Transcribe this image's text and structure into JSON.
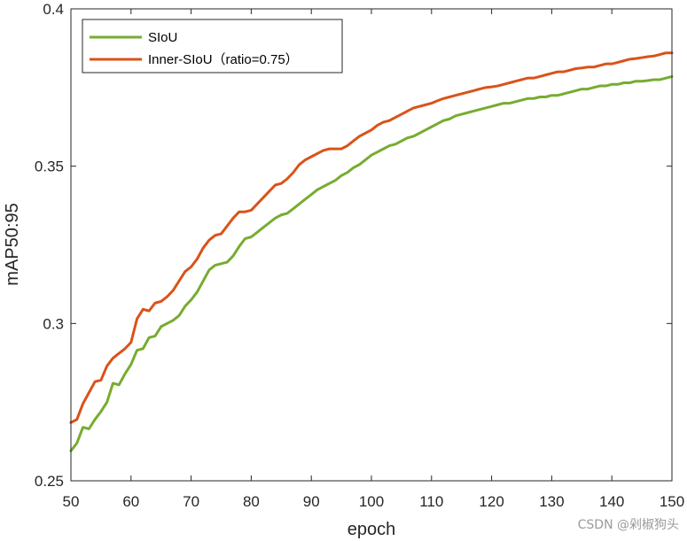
{
  "chart_data": {
    "type": "line",
    "xlabel": "epoch",
    "ylabel": "mAP50:95",
    "xlim": [
      50,
      150
    ],
    "ylim": [
      0.25,
      0.4
    ],
    "xticks": [
      50,
      60,
      70,
      80,
      90,
      100,
      110,
      120,
      130,
      140,
      150
    ],
    "yticks": [
      0.25,
      0.3,
      0.35,
      0.4
    ],
    "ytick_labels": [
      "0.25",
      "0.3",
      "0.35",
      "0.4"
    ],
    "grid": false,
    "legend_position": "top-left",
    "series": [
      {
        "name": "SIoU",
        "color": "#77ac30",
        "x": [
          50,
          51,
          52,
          53,
          54,
          55,
          56,
          57,
          58,
          59,
          60,
          61,
          62,
          63,
          64,
          65,
          66,
          67,
          68,
          69,
          70,
          71,
          72,
          73,
          74,
          75,
          76,
          77,
          78,
          79,
          80,
          81,
          82,
          83,
          84,
          85,
          86,
          87,
          88,
          89,
          90,
          91,
          92,
          93,
          94,
          95,
          96,
          97,
          98,
          99,
          100,
          101,
          102,
          103,
          104,
          105,
          106,
          107,
          108,
          109,
          110,
          111,
          112,
          113,
          114,
          115,
          116,
          117,
          118,
          119,
          120,
          121,
          122,
          123,
          124,
          125,
          126,
          127,
          128,
          129,
          130,
          131,
          132,
          133,
          134,
          135,
          136,
          137,
          138,
          139,
          140,
          141,
          142,
          143,
          144,
          145,
          146,
          147,
          148,
          149,
          150
        ],
        "values": [
          0.2595,
          0.262,
          0.267,
          0.2665,
          0.2695,
          0.272,
          0.275,
          0.281,
          0.2805,
          0.284,
          0.287,
          0.2915,
          0.292,
          0.2955,
          0.296,
          0.299,
          0.3,
          0.301,
          0.3025,
          0.3055,
          0.3075,
          0.31,
          0.3135,
          0.317,
          0.3185,
          0.319,
          0.3195,
          0.3215,
          0.3245,
          0.327,
          0.3275,
          0.329,
          0.3305,
          0.332,
          0.3335,
          0.3345,
          0.335,
          0.3365,
          0.338,
          0.3395,
          0.341,
          0.3425,
          0.3435,
          0.3445,
          0.3455,
          0.347,
          0.348,
          0.3495,
          0.3505,
          0.352,
          0.3535,
          0.3545,
          0.3555,
          0.3565,
          0.357,
          0.358,
          0.359,
          0.3595,
          0.3605,
          0.3615,
          0.3625,
          0.3635,
          0.3645,
          0.365,
          0.366,
          0.3665,
          0.367,
          0.3675,
          0.368,
          0.3685,
          0.369,
          0.3695,
          0.37,
          0.37,
          0.3705,
          0.371,
          0.3715,
          0.3715,
          0.372,
          0.372,
          0.3725,
          0.3725,
          0.373,
          0.3735,
          0.374,
          0.3745,
          0.3745,
          0.375,
          0.3755,
          0.3755,
          0.376,
          0.376,
          0.3765,
          0.3765,
          0.377,
          0.377,
          0.3772,
          0.3775,
          0.3775,
          0.378,
          0.3785
        ]
      },
      {
        "name": "Inner-SIoU（ratio=0.75）",
        "color": "#d95319",
        "x": [
          50,
          51,
          52,
          53,
          54,
          55,
          56,
          57,
          58,
          59,
          60,
          61,
          62,
          63,
          64,
          65,
          66,
          67,
          68,
          69,
          70,
          71,
          72,
          73,
          74,
          75,
          76,
          77,
          78,
          79,
          80,
          81,
          82,
          83,
          84,
          85,
          86,
          87,
          88,
          89,
          90,
          91,
          92,
          93,
          94,
          95,
          96,
          97,
          98,
          99,
          100,
          101,
          102,
          103,
          104,
          105,
          106,
          107,
          108,
          109,
          110,
          111,
          112,
          113,
          114,
          115,
          116,
          117,
          118,
          119,
          120,
          121,
          122,
          123,
          124,
          125,
          126,
          127,
          128,
          129,
          130,
          131,
          132,
          133,
          134,
          135,
          136,
          137,
          138,
          139,
          140,
          141,
          142,
          143,
          144,
          145,
          146,
          147,
          148,
          149,
          150
        ],
        "values": [
          0.2685,
          0.2695,
          0.2745,
          0.278,
          0.2815,
          0.282,
          0.2865,
          0.289,
          0.2905,
          0.292,
          0.294,
          0.3015,
          0.3045,
          0.304,
          0.3065,
          0.307,
          0.3085,
          0.3105,
          0.3135,
          0.3165,
          0.318,
          0.3205,
          0.324,
          0.3265,
          0.328,
          0.3285,
          0.331,
          0.3335,
          0.3355,
          0.3355,
          0.336,
          0.338,
          0.34,
          0.342,
          0.344,
          0.3445,
          0.346,
          0.348,
          0.3505,
          0.352,
          0.353,
          0.354,
          0.355,
          0.3555,
          0.3555,
          0.3555,
          0.3565,
          0.358,
          0.3595,
          0.3605,
          0.3615,
          0.363,
          0.364,
          0.3645,
          0.3655,
          0.3665,
          0.3675,
          0.3685,
          0.369,
          0.3695,
          0.37,
          0.3708,
          0.3715,
          0.372,
          0.3725,
          0.373,
          0.3735,
          0.374,
          0.3745,
          0.375,
          0.3752,
          0.3755,
          0.376,
          0.3765,
          0.377,
          0.3775,
          0.378,
          0.378,
          0.3785,
          0.379,
          0.3795,
          0.38,
          0.38,
          0.3805,
          0.381,
          0.3812,
          0.3815,
          0.3815,
          0.382,
          0.3825,
          0.3825,
          0.383,
          0.3835,
          0.384,
          0.3842,
          0.3845,
          0.3848,
          0.385,
          0.3855,
          0.386,
          0.386
        ]
      }
    ]
  },
  "watermark": "CSDN @剁椒狗头"
}
